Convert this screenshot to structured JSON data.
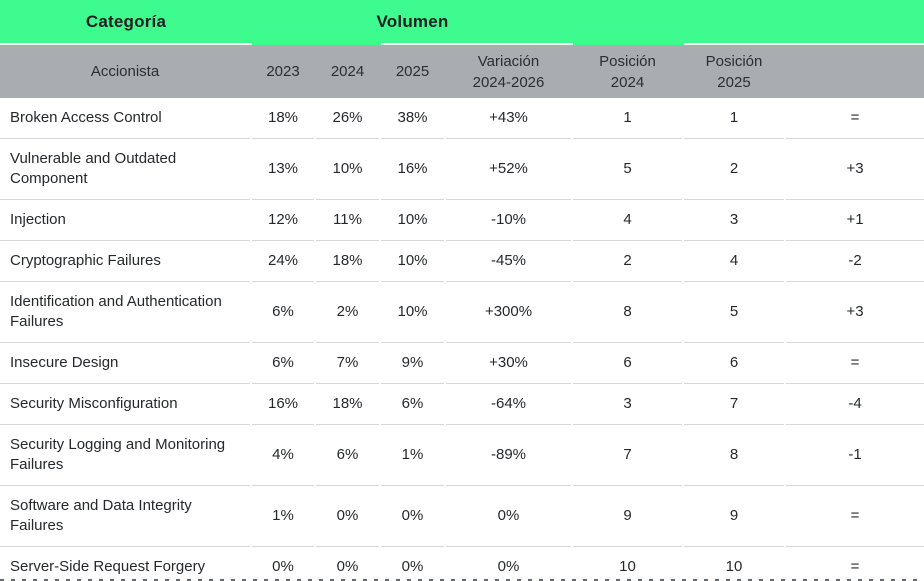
{
  "header": {
    "category_label": "Categoría",
    "volume_label": "Volumen"
  },
  "chart_data": {
    "type": "table",
    "header_groups": [
      {
        "label": "Categoría",
        "spans_columns": [
          "Accionista"
        ]
      },
      {
        "label": "Volumen",
        "spans_columns": [
          "2023",
          "2024",
          "2025",
          "Variación 2024-2026"
        ]
      }
    ],
    "columns": [
      "Accionista",
      "2023",
      "2024",
      "2025",
      "Variación\n2024-2026",
      "Posición\n2024",
      "Posición\n2025",
      ""
    ],
    "rows": [
      [
        "Broken Access Control",
        "18%",
        "26%",
        "38%",
        "+43%",
        "1",
        "1",
        "="
      ],
      [
        "Vulnerable and Outdated Component",
        "13%",
        "10%",
        "16%",
        "+52%",
        "5",
        "2",
        "+3"
      ],
      [
        "Injection",
        "12%",
        "11%",
        "10%",
        "-10%",
        "4",
        "3",
        "+1"
      ],
      [
        "Cryptographic Failures",
        "24%",
        "18%",
        "10%",
        "-45%",
        "2",
        "4",
        "-2"
      ],
      [
        "Identification and Authentication Failures",
        "6%",
        "2%",
        "10%",
        "+300%",
        "8",
        "5",
        "+3"
      ],
      [
        "Insecure Design",
        "6%",
        "7%",
        "9%",
        "+30%",
        "6",
        "6",
        "="
      ],
      [
        "Security Misconfiguration",
        "16%",
        "18%",
        "6%",
        "-64%",
        "3",
        "7",
        "-4"
      ],
      [
        "Security Logging and Monitoring Failures",
        "4%",
        "6%",
        "1%",
        "-89%",
        "7",
        "8",
        "-1"
      ],
      [
        "Software and Data Integrity Failures",
        "1%",
        "0%",
        "0%",
        "0%",
        "9",
        "9",
        "="
      ],
      [
        "Server-Side Request Forgery",
        "0%",
        "0%",
        "0%",
        "0%",
        "10",
        "10",
        "="
      ]
    ]
  },
  "colors": {
    "accent_green": "#3dfb8e",
    "header_gray": "#a9acb1",
    "row_separator": "#d8d8d8",
    "text_dark": "#26282c"
  }
}
